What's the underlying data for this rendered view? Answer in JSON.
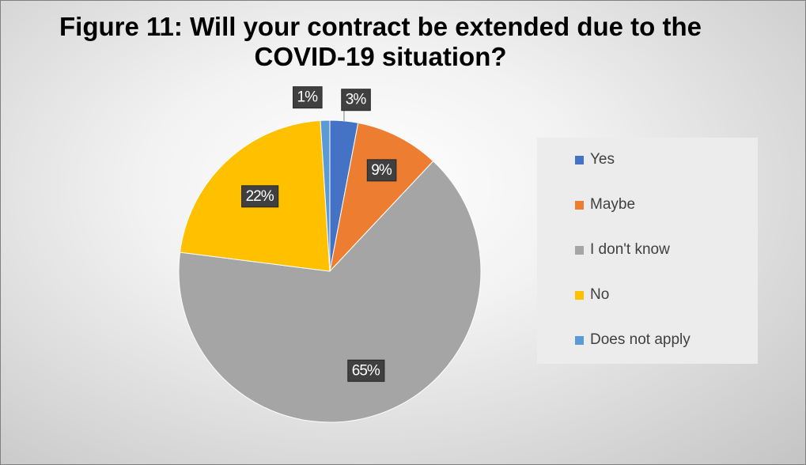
{
  "chart_data": {
    "type": "pie",
    "title": "Figure 11: Will your contract be extended due to the COVID-19 situation?",
    "categories": [
      "Yes",
      "Maybe",
      "I don't know",
      "No",
      "Does not apply"
    ],
    "values": [
      3,
      9,
      65,
      22,
      1
    ],
    "labels": [
      "3%",
      "9%",
      "65%",
      "22%",
      "1%"
    ],
    "colors": [
      "#4472c4",
      "#ed7d31",
      "#a5a5a5",
      "#ffc000",
      "#5b9bd5"
    ],
    "legend_position": "right",
    "start_angle_deg": 0,
    "direction": "clockwise"
  }
}
